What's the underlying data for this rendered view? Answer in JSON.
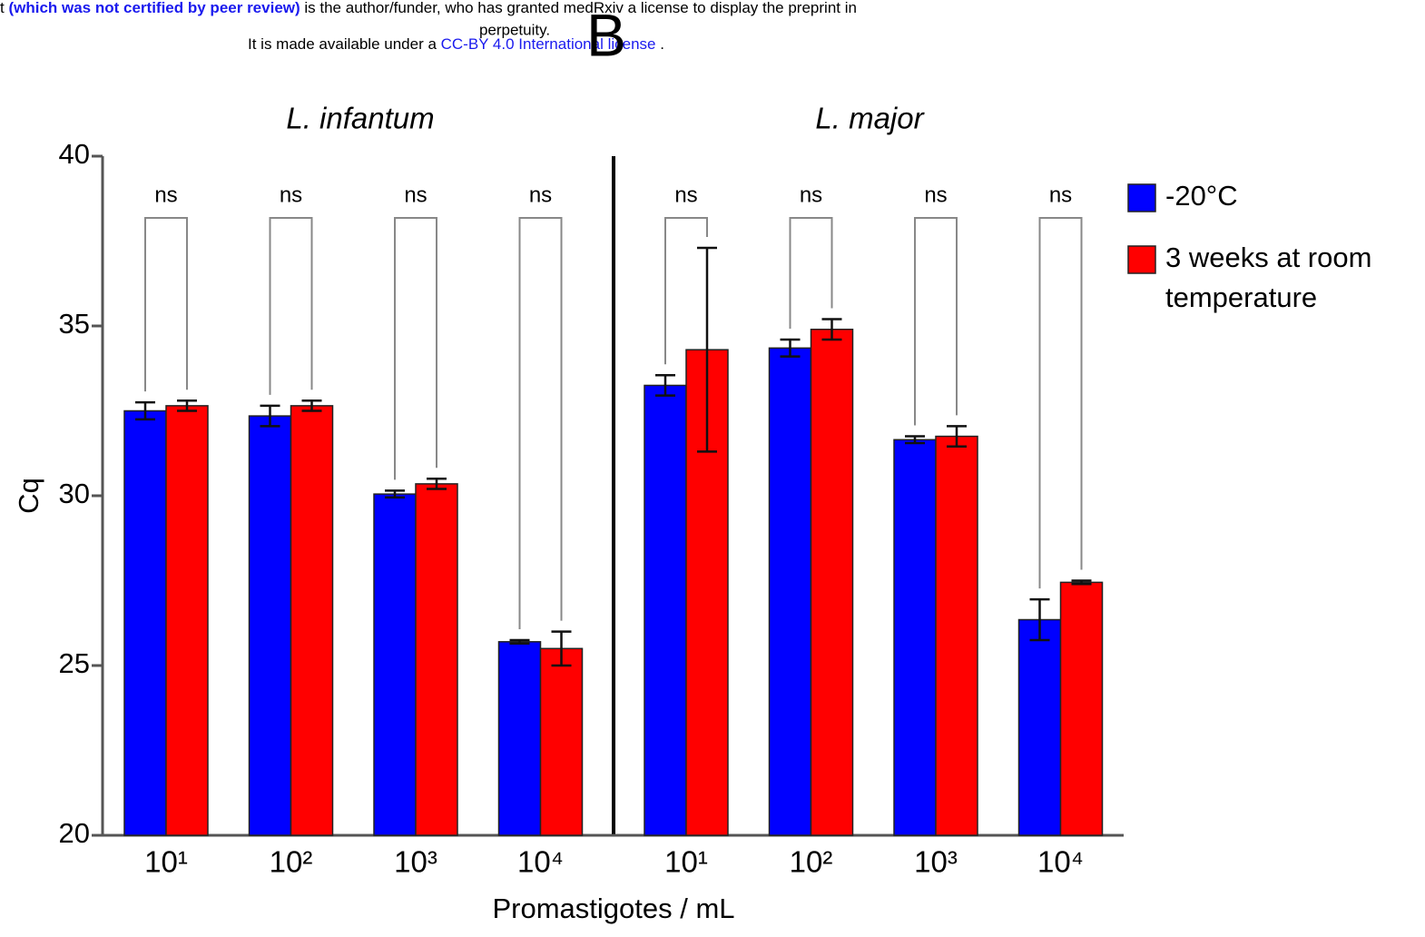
{
  "header": {
    "line1": [
      "t ",
      "(which was not certified by peer review)",
      " is the author/funder, who has granted medRxiv a license to display the preprint in"
    ],
    "line2": "perpetuity.",
    "line3": [
      "It is made available under a ",
      "CC-BY 4.0 International license",
      " ."
    ],
    "panel": "B"
  },
  "chart_data": {
    "type": "bar",
    "group_labels": [
      "L. infantum",
      "L. major"
    ],
    "categories": [
      "10¹",
      "10²",
      "10³",
      "10⁴",
      "10¹",
      "10²",
      "10³",
      "10⁴"
    ],
    "series": [
      {
        "name": "-20°C",
        "color": "#0000ff",
        "values": [
          32.5,
          32.35,
          30.05,
          25.7,
          33.25,
          34.35,
          31.65,
          26.35
        ],
        "errors": [
          0.25,
          0.3,
          0.1,
          0.05,
          0.3,
          0.25,
          0.1,
          0.6
        ]
      },
      {
        "name": "3 weeks at room temperature",
        "color": "#ff0000",
        "values": [
          32.65,
          32.65,
          30.35,
          25.5,
          34.3,
          34.9,
          31.75,
          27.45
        ],
        "errors": [
          0.15,
          0.15,
          0.15,
          0.5,
          3.0,
          0.3,
          0.3,
          0.05
        ]
      }
    ],
    "annotations": [
      "ns",
      "ns",
      "ns",
      "ns",
      "ns",
      "ns",
      "ns",
      "ns"
    ],
    "ylabel": "Cq",
    "xlabel": "Promastigotes / mL",
    "ylim": [
      20,
      40
    ],
    "yticks": [
      20,
      25,
      30,
      35,
      40
    ],
    "legend": "right"
  }
}
